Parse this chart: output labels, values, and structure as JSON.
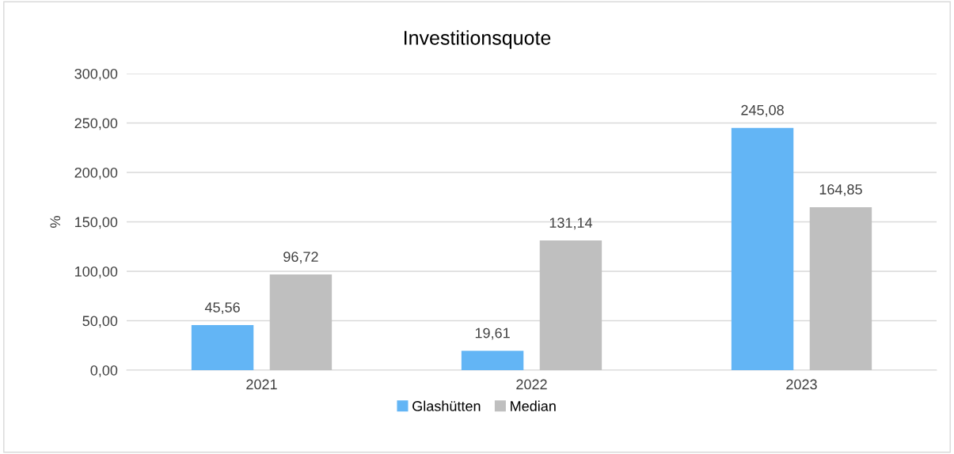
{
  "chart_data": {
    "type": "bar",
    "title": "Investitionsquote",
    "ylabel": "%",
    "categories": [
      "2021",
      "2022",
      "2023"
    ],
    "series": [
      {
        "name": "Glashütten",
        "color": "#63b5f5",
        "values": [
          45.56,
          19.61,
          245.08
        ],
        "value_labels": [
          "45,56",
          "19,61",
          "245,08"
        ]
      },
      {
        "name": "Median",
        "color": "#bfbfbf",
        "values": [
          96.72,
          131.14,
          164.85
        ],
        "value_labels": [
          "96,72",
          "131,14",
          "164,85"
        ]
      }
    ],
    "ylim": [
      0,
      300
    ],
    "yticks": [
      {
        "value": 0,
        "label": "0,00"
      },
      {
        "value": 50,
        "label": "50,00"
      },
      {
        "value": 100,
        "label": "100,00"
      },
      {
        "value": 150,
        "label": "150,00"
      },
      {
        "value": 200,
        "label": "200,00"
      },
      {
        "value": 250,
        "label": "250,00"
      },
      {
        "value": 300,
        "label": "300,00"
      }
    ],
    "grid": "y",
    "legend": "bottom"
  }
}
